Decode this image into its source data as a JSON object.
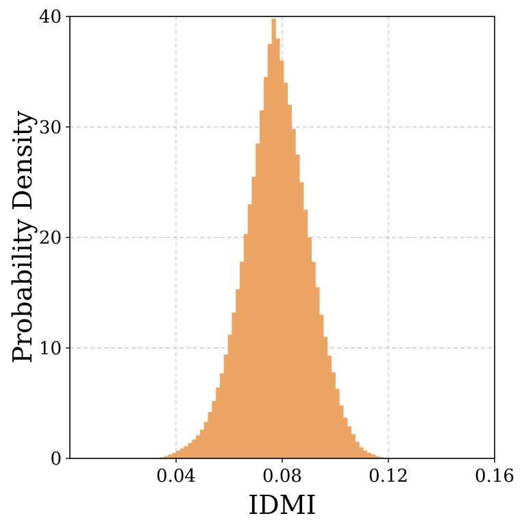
{
  "chart_data": {
    "type": "bar",
    "title": "",
    "xlabel": "IDMI",
    "ylabel": "Probability Density",
    "xlim": [
      0.0,
      0.16
    ],
    "ylim": [
      0,
      40
    ],
    "xticks": [
      0.04,
      0.08,
      0.12,
      0.16
    ],
    "xtick_labels": [
      "0.04",
      "0.08",
      "0.12",
      "0.16"
    ],
    "yticks": [
      0,
      10,
      20,
      30,
      40
    ],
    "ytick_labels": [
      "0",
      "10",
      "20",
      "30",
      "40"
    ],
    "grid": true,
    "bar_color": "#ec9d58",
    "bin_width": 0.0015,
    "series": [
      {
        "bin_start": [
          0.0325,
          0.034,
          0.0355,
          0.037,
          0.0385,
          0.04,
          0.0415,
          0.043,
          0.0445,
          0.046,
          0.0475,
          0.049,
          0.0505,
          0.052,
          0.0535,
          0.055,
          0.0565,
          0.058,
          0.0595,
          0.061,
          0.0625,
          0.064,
          0.0655,
          0.067,
          0.0685,
          0.07,
          0.0715,
          0.073,
          0.0745,
          0.076,
          0.0775,
          0.079,
          0.0805,
          0.082,
          0.0835,
          0.085,
          0.0865,
          0.088,
          0.0895,
          0.091,
          0.0925,
          0.094,
          0.0955,
          0.097,
          0.0985,
          0.1,
          0.1015,
          0.103,
          0.1045,
          0.106,
          0.1075,
          0.109,
          0.1105,
          0.112,
          0.1135,
          0.115,
          0.1165,
          0.118
        ],
        "values": [
          0.05,
          0.1,
          0.2,
          0.35,
          0.5,
          0.7,
          0.9,
          1.1,
          1.4,
          1.7,
          2.1,
          2.6,
          3.3,
          4.2,
          5.2,
          6.4,
          7.7,
          9.4,
          11.2,
          13.2,
          15.3,
          17.8,
          20.3,
          23.0,
          25.5,
          28.5,
          31.5,
          34.5,
          37.5,
          39.8,
          38.0,
          36.0,
          34.0,
          32.0,
          29.8,
          27.5,
          25.0,
          22.5,
          20.0,
          17.8,
          15.5,
          13.0,
          11.0,
          9.3,
          7.8,
          6.3,
          4.8,
          3.7,
          2.9,
          2.2,
          1.5,
          1.0,
          0.7,
          0.5,
          0.35,
          0.2,
          0.12,
          0.06
        ]
      }
    ]
  }
}
